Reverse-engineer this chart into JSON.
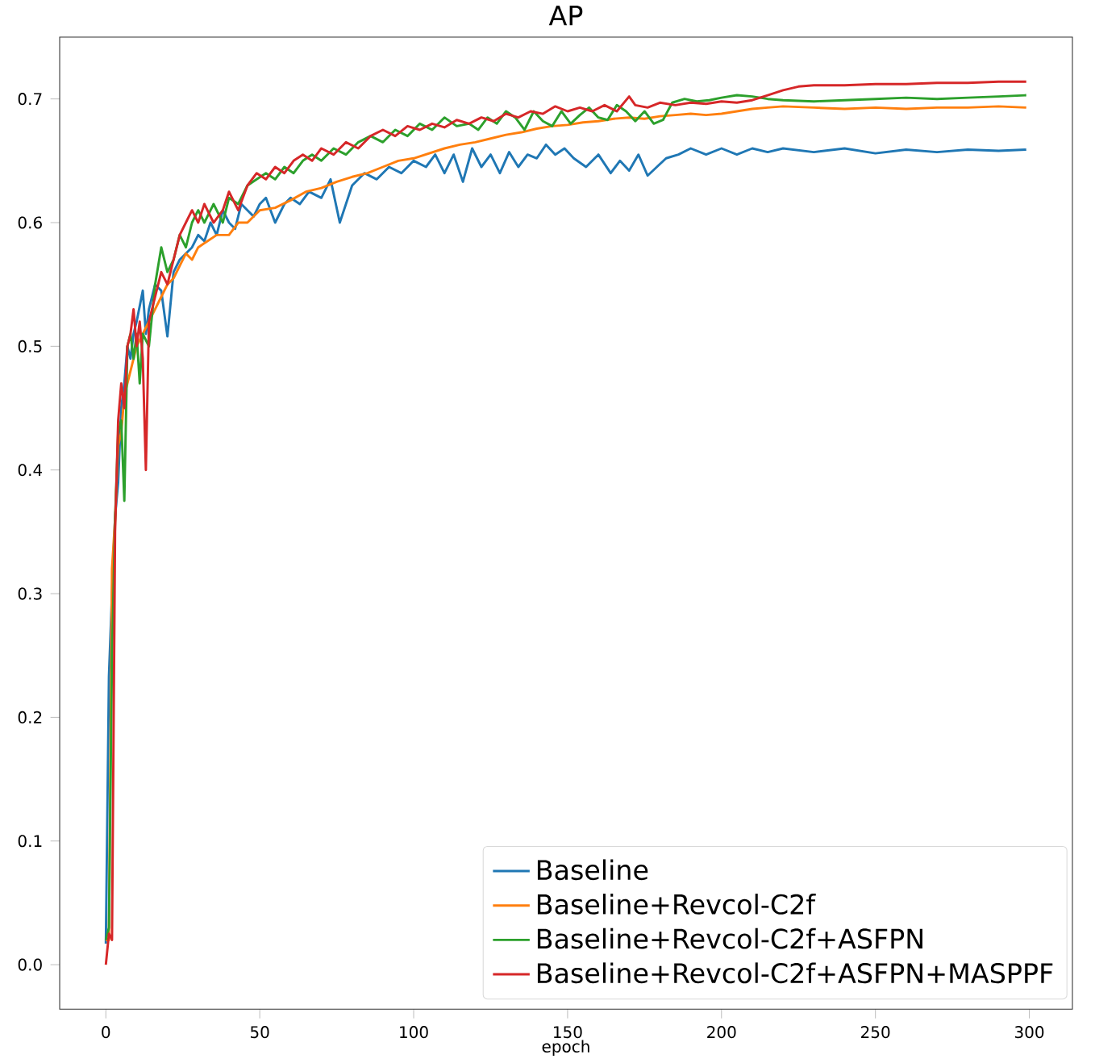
{
  "chart_data": {
    "type": "line",
    "title": "AP",
    "xlabel": "epoch",
    "legend": "bottom right",
    "xlim": [
      -15,
      314
    ],
    "ylim": [
      -0.036,
      0.75
    ],
    "xticks": [
      0,
      50,
      100,
      150,
      200,
      250,
      300
    ],
    "yticks": [
      {
        "value": 0,
        "label": "0.0"
      },
      {
        "value": 0.1,
        "label": "0.1"
      },
      {
        "value": 0.2,
        "label": "0.2"
      },
      {
        "value": 0.3,
        "label": "0.3"
      },
      {
        "value": 0.4,
        "label": "0.4"
      },
      {
        "value": 0.5,
        "label": "0.5"
      },
      {
        "value": 0.6,
        "label": "0.6"
      },
      {
        "value": 0.7,
        "label": "0.7"
      }
    ],
    "series": [
      {
        "name": "Baseline",
        "color": "#1f77b4",
        "x": [
          0,
          1,
          2,
          3,
          4,
          5,
          6,
          7,
          8,
          9,
          10,
          12,
          13,
          14,
          16,
          18,
          20,
          22,
          24,
          26,
          28,
          30,
          32,
          34,
          36,
          38,
          40,
          42,
          44,
          46,
          48,
          50,
          52,
          55,
          58,
          60,
          63,
          66,
          70,
          73,
          76,
          80,
          84,
          88,
          92,
          96,
          100,
          104,
          107,
          110,
          113,
          116,
          119,
          122,
          125,
          128,
          131,
          134,
          137,
          140,
          143,
          146,
          149,
          152,
          156,
          160,
          164,
          167,
          170,
          173,
          176,
          179,
          182,
          186,
          190,
          195,
          200,
          205,
          210,
          215,
          220,
          230,
          240,
          250,
          260,
          270,
          280,
          290,
          299
        ],
        "values": [
          0.017,
          0.233,
          0.3,
          0.362,
          0.39,
          0.45,
          0.47,
          0.5,
          0.49,
          0.51,
          0.52,
          0.545,
          0.51,
          0.53,
          0.55,
          0.545,
          0.508,
          0.56,
          0.57,
          0.575,
          0.58,
          0.59,
          0.585,
          0.6,
          0.59,
          0.61,
          0.6,
          0.595,
          0.615,
          0.61,
          0.605,
          0.615,
          0.62,
          0.6,
          0.615,
          0.62,
          0.615,
          0.625,
          0.62,
          0.635,
          0.6,
          0.63,
          0.64,
          0.635,
          0.645,
          0.64,
          0.65,
          0.645,
          0.655,
          0.64,
          0.655,
          0.633,
          0.66,
          0.645,
          0.655,
          0.64,
          0.657,
          0.645,
          0.655,
          0.652,
          0.663,
          0.655,
          0.66,
          0.652,
          0.645,
          0.655,
          0.64,
          0.65,
          0.642,
          0.655,
          0.638,
          0.645,
          0.652,
          0.655,
          0.66,
          0.655,
          0.66,
          0.655,
          0.66,
          0.657,
          0.66,
          0.657,
          0.66,
          0.656,
          0.659,
          0.657,
          0.659,
          0.658,
          0.659
        ]
      },
      {
        "name": "Baseline+Revcol-C2f",
        "color": "#ff7f0e",
        "x": [
          0,
          1,
          2,
          3,
          4,
          5,
          6,
          7,
          8,
          10,
          12,
          14,
          16,
          18,
          20,
          22,
          24,
          26,
          28,
          30,
          33,
          36,
          40,
          43,
          46,
          50,
          55,
          60,
          65,
          70,
          75,
          80,
          85,
          90,
          95,
          100,
          105,
          110,
          115,
          120,
          125,
          130,
          135,
          140,
          145,
          150,
          155,
          160,
          165,
          170,
          175,
          180,
          185,
          190,
          195,
          200,
          205,
          210,
          215,
          220,
          230,
          240,
          250,
          260,
          270,
          280,
          290,
          299
        ],
        "values": [
          0.02,
          0.02,
          0.32,
          0.36,
          0.42,
          0.43,
          0.46,
          0.47,
          0.48,
          0.5,
          0.51,
          0.52,
          0.53,
          0.54,
          0.55,
          0.555,
          0.565,
          0.575,
          0.57,
          0.58,
          0.585,
          0.59,
          0.59,
          0.6,
          0.6,
          0.61,
          0.612,
          0.618,
          0.625,
          0.628,
          0.633,
          0.637,
          0.64,
          0.645,
          0.65,
          0.652,
          0.656,
          0.66,
          0.663,
          0.665,
          0.668,
          0.671,
          0.673,
          0.676,
          0.678,
          0.679,
          0.681,
          0.682,
          0.684,
          0.685,
          0.684,
          0.686,
          0.687,
          0.688,
          0.687,
          0.688,
          0.69,
          0.692,
          0.693,
          0.694,
          0.693,
          0.692,
          0.693,
          0.692,
          0.693,
          0.693,
          0.694,
          0.693
        ]
      },
      {
        "name": "Baseline+Revcol-C2f+ASFPN",
        "color": "#2ca02c",
        "x": [
          0,
          1,
          2,
          3,
          4,
          5,
          6,
          7,
          8,
          9,
          10,
          11,
          12,
          14,
          16,
          18,
          20,
          22,
          24,
          26,
          28,
          30,
          32,
          35,
          38,
          40,
          43,
          46,
          49,
          52,
          55,
          58,
          61,
          64,
          67,
          70,
          74,
          78,
          82,
          86,
          90,
          94,
          98,
          102,
          106,
          110,
          114,
          118,
          121,
          124,
          127,
          130,
          133,
          136,
          139,
          142,
          145,
          148,
          151,
          154,
          157,
          160,
          163,
          166,
          169,
          172,
          175,
          178,
          181,
          184,
          188,
          192,
          196,
          200,
          205,
          210,
          215,
          220,
          230,
          240,
          250,
          260,
          270,
          280,
          290,
          299
        ],
        "values": [
          0.02,
          0.03,
          0.25,
          0.36,
          0.43,
          0.44,
          0.375,
          0.5,
          0.51,
          0.49,
          0.51,
          0.47,
          0.51,
          0.5,
          0.55,
          0.58,
          0.56,
          0.57,
          0.59,
          0.58,
          0.6,
          0.61,
          0.6,
          0.615,
          0.6,
          0.62,
          0.615,
          0.63,
          0.635,
          0.64,
          0.635,
          0.645,
          0.64,
          0.65,
          0.655,
          0.65,
          0.66,
          0.655,
          0.665,
          0.67,
          0.665,
          0.675,
          0.67,
          0.68,
          0.675,
          0.685,
          0.678,
          0.68,
          0.675,
          0.685,
          0.68,
          0.69,
          0.685,
          0.675,
          0.69,
          0.682,
          0.678,
          0.69,
          0.68,
          0.687,
          0.693,
          0.685,
          0.683,
          0.695,
          0.69,
          0.682,
          0.69,
          0.68,
          0.683,
          0.697,
          0.7,
          0.698,
          0.699,
          0.701,
          0.703,
          0.702,
          0.7,
          0.699,
          0.698,
          0.699,
          0.7,
          0.701,
          0.7,
          0.701,
          0.702,
          0.703
        ]
      },
      {
        "name": "Baseline+Revcol-C2f+ASFPN+MASPPF",
        "color": "#d62728",
        "x": [
          0,
          1,
          2,
          3,
          4,
          5,
          6,
          7,
          8,
          9,
          10,
          11,
          12,
          13,
          14,
          16,
          18,
          20,
          22,
          24,
          26,
          28,
          30,
          32,
          35,
          38,
          40,
          43,
          46,
          49,
          52,
          55,
          58,
          61,
          64,
          67,
          70,
          74,
          78,
          82,
          86,
          90,
          94,
          98,
          102,
          106,
          110,
          114,
          118,
          122,
          126,
          130,
          134,
          138,
          142,
          146,
          150,
          154,
          158,
          162,
          166,
          170,
          172,
          176,
          180,
          185,
          190,
          195,
          200,
          205,
          210,
          215,
          220,
          225,
          230,
          240,
          250,
          260,
          270,
          280,
          290,
          299
        ],
        "values": [
          0.0,
          0.025,
          0.02,
          0.35,
          0.44,
          0.47,
          0.45,
          0.5,
          0.51,
          0.53,
          0.5,
          0.52,
          0.49,
          0.4,
          0.52,
          0.54,
          0.56,
          0.55,
          0.57,
          0.59,
          0.6,
          0.61,
          0.6,
          0.615,
          0.6,
          0.61,
          0.625,
          0.61,
          0.63,
          0.64,
          0.635,
          0.645,
          0.64,
          0.65,
          0.655,
          0.65,
          0.66,
          0.655,
          0.665,
          0.66,
          0.67,
          0.675,
          0.67,
          0.678,
          0.675,
          0.68,
          0.677,
          0.683,
          0.68,
          0.685,
          0.682,
          0.688,
          0.685,
          0.69,
          0.688,
          0.694,
          0.69,
          0.693,
          0.69,
          0.695,
          0.69,
          0.702,
          0.695,
          0.693,
          0.697,
          0.695,
          0.697,
          0.696,
          0.698,
          0.697,
          0.699,
          0.703,
          0.707,
          0.71,
          0.711,
          0.711,
          0.712,
          0.712,
          0.713,
          0.713,
          0.714,
          0.714
        ]
      }
    ]
  }
}
